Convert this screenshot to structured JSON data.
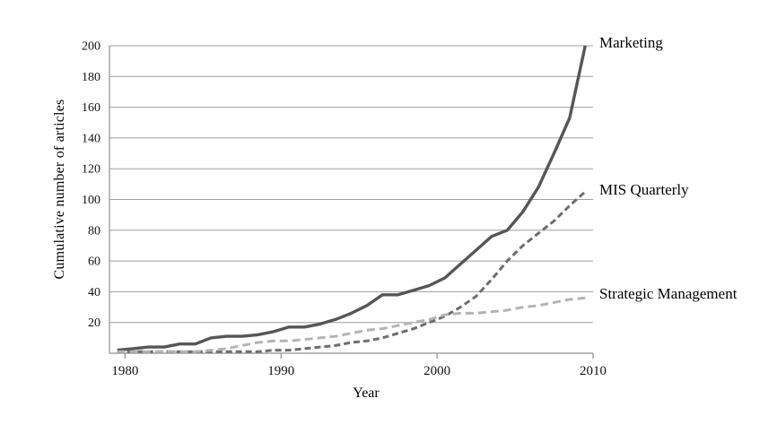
{
  "chart_data": {
    "type": "line",
    "title": "",
    "xlabel": "Year",
    "ylabel": "Cumulative number of articles",
    "x": [
      1980,
      1981,
      1982,
      1983,
      1984,
      1985,
      1986,
      1987,
      1988,
      1989,
      1990,
      1991,
      1992,
      1993,
      1994,
      1995,
      1996,
      1997,
      1998,
      1999,
      2000,
      2001,
      2002,
      2003,
      2004,
      2005,
      2006,
      2007,
      2008,
      2009,
      2010
    ],
    "xticks": [
      1980,
      1990,
      2000,
      2010
    ],
    "yticks": [
      20,
      40,
      60,
      80,
      100,
      120,
      140,
      160,
      180,
      200
    ],
    "ylim": [
      0,
      200
    ],
    "xlim": [
      1980,
      2010
    ],
    "grid": true,
    "legend_position": "labels-at-line-ends-right",
    "style": {
      "grid_color": "#9e9e9e",
      "axis_color": "#8f8f8f",
      "background": "#ffffff",
      "text_color": "#131313"
    },
    "series": [
      {
        "name": "Marketing",
        "line": {
          "color": "#565656",
          "width": 3.4,
          "dash": ""
        },
        "values": [
          2,
          3,
          4,
          4,
          6,
          6,
          10,
          11,
          11,
          12,
          14,
          17,
          17,
          19,
          22,
          26,
          31,
          38,
          38,
          41,
          44,
          49,
          58,
          67,
          76,
          80,
          92,
          108,
          130,
          153,
          200
        ]
      },
      {
        "name": "MIS Quarterly",
        "line": {
          "color": "#6e6e6e",
          "width": 3,
          "dash": "7 4"
        },
        "values": [
          1,
          1,
          1,
          1,
          1,
          1,
          1,
          1,
          1,
          1,
          2,
          2,
          3,
          4,
          5,
          7,
          8,
          10,
          13,
          16,
          20,
          24,
          30,
          37,
          48,
          60,
          70,
          78,
          86,
          96,
          105
        ]
      },
      {
        "name": "Strategic Management",
        "line": {
          "color": "#b4b4b4",
          "width": 3,
          "dash": "9 5"
        },
        "values": [
          1,
          1,
          1,
          1,
          1,
          1,
          2,
          3,
          5,
          7,
          8,
          8,
          9,
          10,
          11,
          13,
          15,
          16,
          18,
          20,
          22,
          25,
          26,
          26,
          27,
          28,
          30,
          31,
          33,
          35,
          36
        ]
      }
    ]
  }
}
